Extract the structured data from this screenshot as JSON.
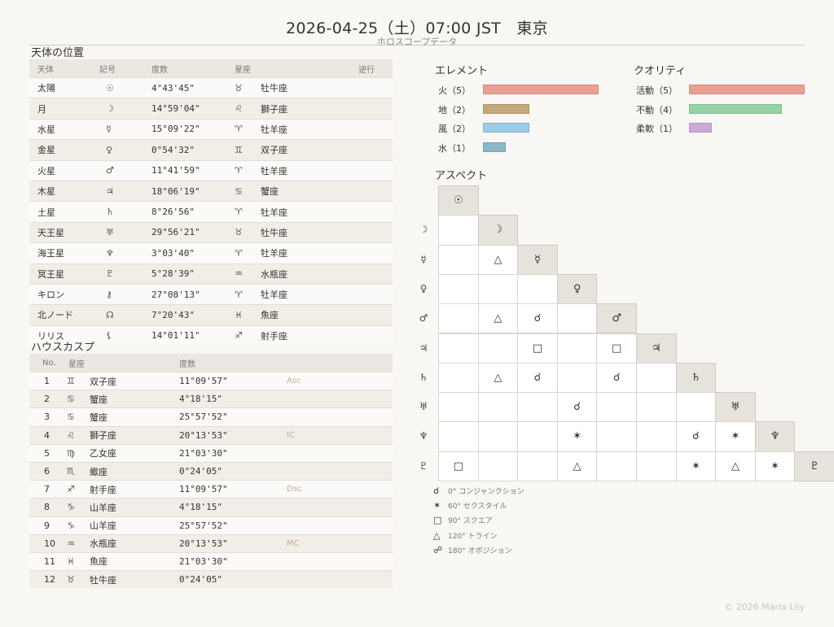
{
  "header": {
    "title": "2026-04-25（土）07:00 JST　東京",
    "subtitle": "ホロスコープデータ"
  },
  "planets": {
    "heading": "天体の位置",
    "columns": [
      "天体",
      "記号",
      "度数",
      "星座",
      "逆行"
    ],
    "rows": [
      {
        "name": "太陽",
        "symbol": "☉",
        "degree": "4°43'45\"",
        "sign_symbol": "♉",
        "sign": "牡牛座",
        "retro": ""
      },
      {
        "name": "月",
        "symbol": "☽",
        "degree": "14°59'04\"",
        "sign_symbol": "♌",
        "sign": "獅子座",
        "retro": ""
      },
      {
        "name": "水星",
        "symbol": "☿",
        "degree": "15°09'22\"",
        "sign_symbol": "♈",
        "sign": "牡羊座",
        "retro": ""
      },
      {
        "name": "金星",
        "symbol": "♀",
        "degree": "0°54'32\"",
        "sign_symbol": "♊",
        "sign": "双子座",
        "retro": ""
      },
      {
        "name": "火星",
        "symbol": "♂",
        "degree": "11°41'59\"",
        "sign_symbol": "♈",
        "sign": "牡羊座",
        "retro": ""
      },
      {
        "name": "木星",
        "symbol": "♃",
        "degree": "18°06'19\"",
        "sign_symbol": "♋",
        "sign": "蟹座",
        "retro": ""
      },
      {
        "name": "土星",
        "symbol": "♄",
        "degree": "8°26'56\"",
        "sign_symbol": "♈",
        "sign": "牡羊座",
        "retro": ""
      },
      {
        "name": "天王星",
        "symbol": "♅",
        "degree": "29°56'21\"",
        "sign_symbol": "♉",
        "sign": "牡牛座",
        "retro": ""
      },
      {
        "name": "海王星",
        "symbol": "♆",
        "degree": "3°03'40\"",
        "sign_symbol": "♈",
        "sign": "牡羊座",
        "retro": ""
      },
      {
        "name": "冥王星",
        "symbol": "♇",
        "degree": "5°28'39\"",
        "sign_symbol": "♒",
        "sign": "水瓶座",
        "retro": ""
      },
      {
        "name": "キロン",
        "symbol": "⚷",
        "degree": "27°08'13\"",
        "sign_symbol": "♈",
        "sign": "牡羊座",
        "retro": ""
      },
      {
        "name": "北ノード",
        "symbol": "☊",
        "degree": "7°20'43\"",
        "sign_symbol": "♓",
        "sign": "魚座",
        "retro": ""
      },
      {
        "name": "リリス",
        "symbol": "⚸",
        "degree": "14°01'11\"",
        "sign_symbol": "♐",
        "sign": "射手座",
        "retro": ""
      }
    ]
  },
  "houses": {
    "heading": "ハウスカスプ",
    "columns": [
      "No.",
      "星座",
      "度数",
      ""
    ],
    "rows": [
      {
        "no": "1",
        "sign_symbol": "♊",
        "sign": "双子座",
        "degree": "11°09'57\"",
        "corner": "Asc"
      },
      {
        "no": "2",
        "sign_symbol": "♋",
        "sign": "蟹座",
        "degree": "4°18'15\"",
        "corner": ""
      },
      {
        "no": "3",
        "sign_symbol": "♋",
        "sign": "蟹座",
        "degree": "25°57'52\"",
        "corner": ""
      },
      {
        "no": "4",
        "sign_symbol": "♌",
        "sign": "獅子座",
        "degree": "20°13'53\"",
        "corner": "IC"
      },
      {
        "no": "5",
        "sign_symbol": "♍",
        "sign": "乙女座",
        "degree": "21°03'30\"",
        "corner": ""
      },
      {
        "no": "6",
        "sign_symbol": "♏",
        "sign": "蠍座",
        "degree": "0°24'05\"",
        "corner": ""
      },
      {
        "no": "7",
        "sign_symbol": "♐",
        "sign": "射手座",
        "degree": "11°09'57\"",
        "corner": "Dsc"
      },
      {
        "no": "8",
        "sign_symbol": "♑",
        "sign": "山羊座",
        "degree": "4°18'15\"",
        "corner": ""
      },
      {
        "no": "9",
        "sign_symbol": "♑",
        "sign": "山羊座",
        "degree": "25°57'52\"",
        "corner": ""
      },
      {
        "no": "10",
        "sign_symbol": "♒",
        "sign": "水瓶座",
        "degree": "20°13'53\"",
        "corner": "MC"
      },
      {
        "no": "11",
        "sign_symbol": "♓",
        "sign": "魚座",
        "degree": "21°03'30\"",
        "corner": ""
      },
      {
        "no": "12",
        "sign_symbol": "♉",
        "sign": "牡牛座",
        "degree": "0°24'05\"",
        "corner": ""
      }
    ]
  },
  "elements": {
    "heading": "エレメント",
    "items": [
      {
        "label": "火（5）",
        "count": 5,
        "color": "#e9a093"
      },
      {
        "label": "地（2）",
        "count": 2,
        "color": "#c3a97d"
      },
      {
        "label": "風（2）",
        "count": 2,
        "color": "#9ccbe8"
      },
      {
        "label": "水（1）",
        "count": 1,
        "color": "#8cb7c8"
      }
    ]
  },
  "qualities": {
    "heading": "クオリティ",
    "items": [
      {
        "label": "活動（5）",
        "count": 5,
        "color": "#e9a093"
      },
      {
        "label": "不動（4）",
        "count": 4,
        "color": "#96d3a6"
      },
      {
        "label": "柔軟（1）",
        "count": 1,
        "color": "#cda9d9"
      }
    ]
  },
  "aspects": {
    "heading": "アスペクト",
    "planets": [
      "☉",
      "☽",
      "☿",
      "♀",
      "♂",
      "♃",
      "♄",
      "♅",
      "♆",
      "♇"
    ],
    "matrix": [
      [],
      [
        ""
      ],
      [
        "",
        "△"
      ],
      [
        "",
        "",
        ""
      ],
      [
        "",
        "△",
        "☌",
        ""
      ],
      [
        "",
        "",
        "□",
        "",
        "□"
      ],
      [
        "",
        "△",
        "☌",
        "",
        "☌",
        ""
      ],
      [
        "",
        "",
        "",
        "☌",
        "",
        "",
        ""
      ],
      [
        "",
        "",
        "",
        "✶",
        "",
        "",
        "☌",
        "✶"
      ],
      [
        "□",
        "",
        "",
        "△",
        "",
        "",
        "✶",
        "△",
        "✶"
      ]
    ],
    "legend": [
      {
        "symbol": "☌",
        "text": "0° コンジャンクション"
      },
      {
        "symbol": "✶",
        "text": "60° セクスタイル"
      },
      {
        "symbol": "□",
        "text": "90° スクエア"
      },
      {
        "symbol": "△",
        "text": "120° トライン"
      },
      {
        "symbol": "☍",
        "text": "180° オポジション"
      }
    ]
  },
  "footer": {
    "copyright": "© 2026 Maria Lily"
  }
}
